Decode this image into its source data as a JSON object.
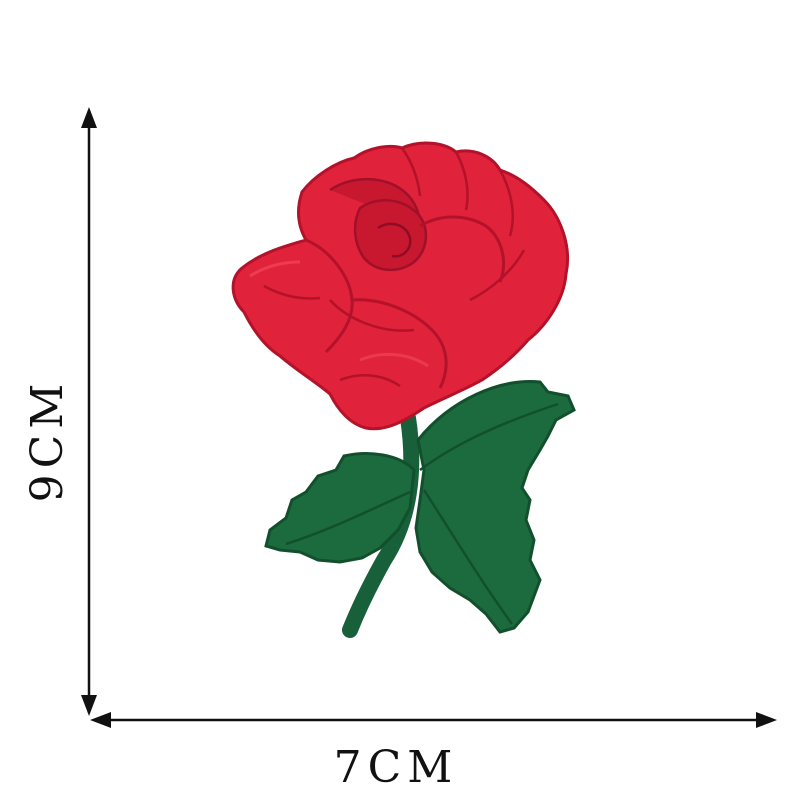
{
  "dimensions": {
    "height_label": "9CM",
    "width_label": "7CM"
  },
  "colors": {
    "background": "#ffffff",
    "petal_main": "#e0223a",
    "petal_shadow": "#b3122a",
    "petal_highlight": "#f04454",
    "leaf_main": "#1c6b3e",
    "leaf_dark": "#12502d",
    "stem": "#17603a",
    "arrow": "#111111"
  },
  "image": {
    "subject_icon": "rose-embroidery-patch"
  }
}
